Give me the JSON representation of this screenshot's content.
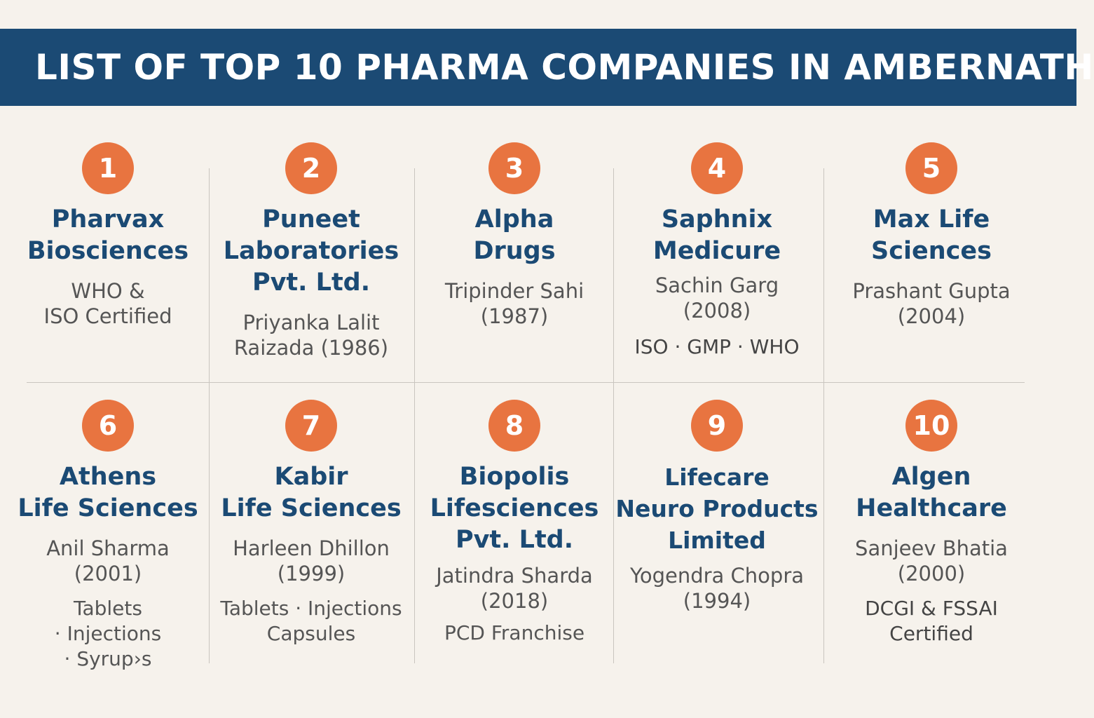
{
  "title": "LIST OF TOP 10 PHARMA COMPANIES IN AMBERNATH",
  "companies": [
    {
      "rank": "1",
      "name": "Pharvax\nBiosciences",
      "founder": "WHO &\nISO Certified",
      "extra": ""
    },
    {
      "rank": "2",
      "name": "Puneet\nLaboratories\nPvt. Ltd.",
      "founder": "Priyanka Lalit\nRaizada (1986)",
      "extra": ""
    },
    {
      "rank": "3",
      "name": "Alpha\nDrugs",
      "founder": "Tripinder Sahi\n(1987)",
      "extra": ""
    },
    {
      "rank": "4",
      "name": "Saphnix\nMedicure",
      "founder": "Sachin Garg\n(2008)",
      "extra": "ISO · GMP · WHO"
    },
    {
      "rank": "5",
      "name": "Max Life\nSciences",
      "founder": "Prashant Gupta\n(2004)",
      "extra": ""
    },
    {
      "rank": "6",
      "name": "Athens\nLife Sciences",
      "founder": "Anil Sharma\n(2001)",
      "extra": "Tablets\n· Injections\n· Syrup›s"
    },
    {
      "rank": "7",
      "name": "Kabir\nLife Sciences",
      "founder": "Harleen Dhillon\n(1999)",
      "extra": "Tablets · Injections\nCapsules"
    },
    {
      "rank": "8",
      "name": "Biopolis\nLifesciences\nPvt. Ltd.",
      "founder": "Jatindra Sharda\n(2018)",
      "extra": "PCD Franchise"
    },
    {
      "rank": "9",
      "name": "Lifecare\nNeuro Products\nLimited",
      "founder": "Yogendra Chopra\n(1994)",
      "extra": ""
    },
    {
      "rank": "10",
      "name": "Algen\nHealthcare",
      "founder": "Sanjeev Bhatia\n(2000)",
      "extra": "DCGI & FSSAI\nCertified"
    }
  ]
}
